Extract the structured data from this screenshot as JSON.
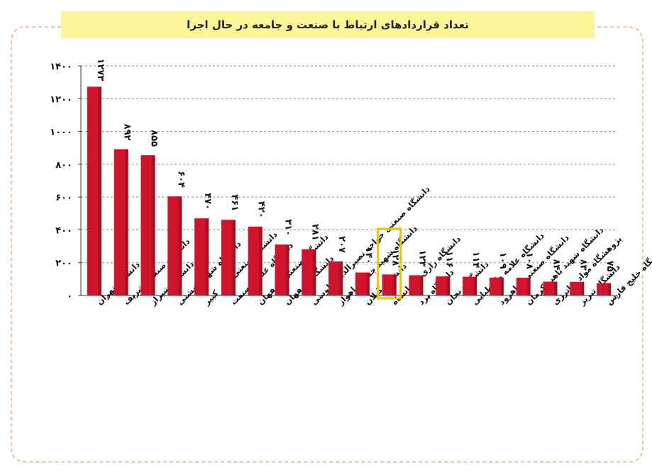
{
  "chart_data": {
    "type": "bar",
    "title": "تعداد قراردادهای ارتباط با صنعت و جامعه در حال اجرا",
    "categories": [
      "دانشگاه تهران",
      "دانشگاه صنعتی شریف",
      "دانشگاه شیراز",
      "دانشگاه شهید بهشتی",
      "دانشگاه صنعتی امیر کبیر",
      "دانشگاه علم و صنعت",
      "دانشگاه صنعتی اصفهان",
      "دانشگاه اصفهان",
      "دانشگاه صنعتی خواجه نصیرالدین طوسی",
      "دانشگاه شهید چمران اهواز",
      "دانشگاه گیلان",
      "دانشگاه رازی کرمانشاه",
      "دانشگاه یزد",
      "دانشگاه زنجان",
      "دانشگاه علامه طباطبایی",
      "دانشگاه صنعتی شاهرود",
      "دانشگاه شهید باهنر کرمان",
      "پژوهشگاه مواد و انرژی",
      "دانشگاه تبریز",
      "دانشگاه خلیج فارس"
    ],
    "values": [
      1273,
      892,
      855,
      604,
      470,
      461,
      420,
      310,
      281,
      207,
      140,
      128,
      123,
      116,
      114,
      109,
      108,
      84,
      83,
      75
    ],
    "value_labels": [
      "۱۲۷۳",
      "۸۹۲",
      "۸۵۵",
      "۶۰۴",
      "۴۷۰",
      "۴۶۱",
      "۴۲۰",
      "۳۱۰",
      "۲۸۱",
      "۲۰۷",
      "۱۴۰",
      "۱۲۸",
      "۱۲۳",
      "۱۱۶",
      "۱۱۴",
      "۱۰۹",
      "۱۰۸",
      "۸۴",
      "۸۳",
      "۷۵"
    ],
    "yticks": [
      0,
      200,
      400,
      600,
      800,
      1000,
      1200,
      1400
    ],
    "ytick_labels": [
      "۰",
      "۲۰۰",
      "۴۰۰",
      "۶۰۰",
      "۸۰۰",
      "۱۰۰۰",
      "۱۲۰۰",
      "۱۴۰۰"
    ],
    "ylim": [
      0,
      1400
    ],
    "grid": true,
    "highlighted_index": 11,
    "colors": {
      "bar": "#d0142b",
      "bar_dark": "#8e0c1c",
      "highlight_box": "#f3c400",
      "grid": "#8a8a8a",
      "frame": "#f4a261",
      "title_bg": "#fbf598"
    }
  }
}
